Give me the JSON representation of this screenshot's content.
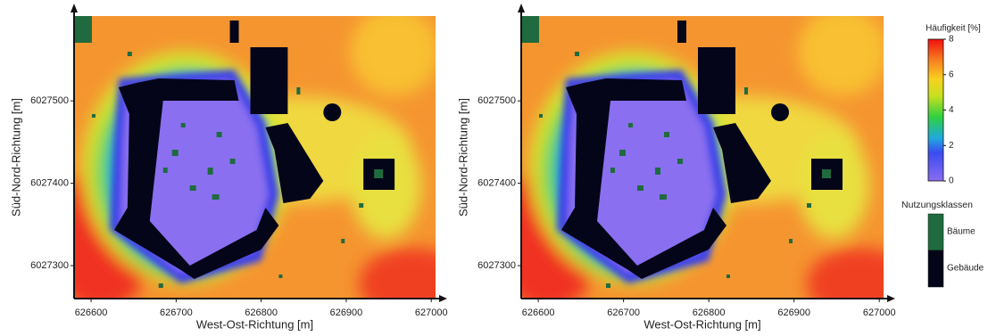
{
  "chart_data": [
    {
      "type": "heatmap",
      "xlabel": "West-Ost-Richtung [m]",
      "ylabel": "Süd-Nord-Richtung [m]",
      "xlim": [
        626580,
        627005
      ],
      "ylim": [
        6027260,
        6027603
      ],
      "xticks": [
        626600,
        626700,
        626800,
        626900,
        627000
      ],
      "yticks": [
        6027300,
        6027400,
        6027500
      ]
    },
    {
      "type": "heatmap",
      "xlabel": "West-Ost-Richtung [m]",
      "ylabel": "Süd-Nord-Richtung [m]",
      "xlim": [
        626580,
        627005
      ],
      "ylim": [
        6027260,
        6027603
      ],
      "xticks": [
        626600,
        626700,
        626800,
        626900,
        627000
      ],
      "yticks": [
        6027300,
        6027400,
        6027500
      ]
    }
  ],
  "colorbar": {
    "title": "Häufigkeit [%]",
    "lim": [
      0,
      8
    ],
    "ticks": [
      0,
      2,
      4,
      6,
      8
    ]
  },
  "legend": {
    "title": "Nutzungsklassen",
    "items": [
      {
        "name": "Bäume",
        "color": "#1f6b3f"
      },
      {
        "name": "Gebäude",
        "color": "#05051a"
      }
    ]
  }
}
